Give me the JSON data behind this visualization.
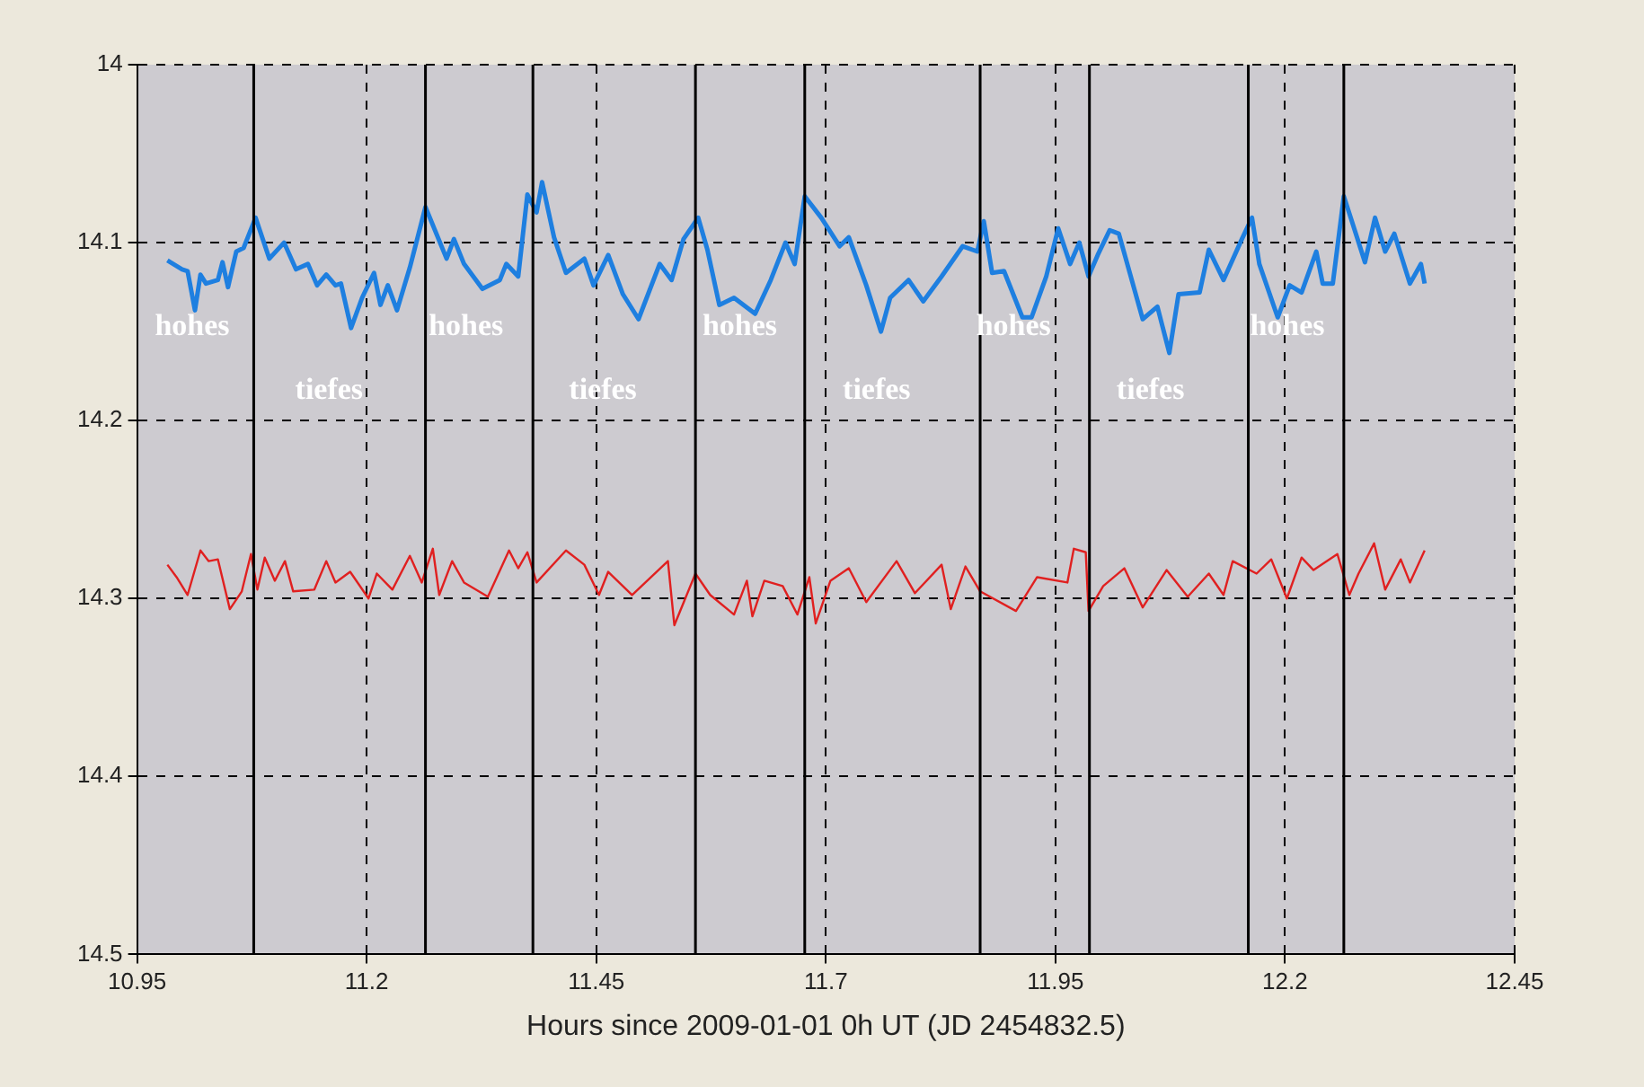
{
  "chart_data": {
    "type": "line",
    "xlabel": "Hours since 2009-01-01 0h UT (JD 2454832.5)",
    "xlim": [
      10.95,
      12.45
    ],
    "xticks": [
      10.95,
      11.2,
      11.45,
      11.7,
      11.95,
      12.2,
      12.45
    ],
    "ylim": [
      14.5,
      14
    ],
    "yticks": [
      14,
      14.1,
      14.2,
      14.3,
      14.4,
      14.5
    ],
    "grid": true,
    "legend": false,
    "line_style": "solid",
    "marker": "none",
    "series": [
      {
        "color": "#1e7fe0",
        "x": [
          10.983,
          10.999,
          11.005,
          11.013,
          11.019,
          11.025,
          11.038,
          11.043,
          11.049,
          11.058,
          11.066,
          11.079,
          11.094,
          11.11,
          11.123,
          11.136,
          11.146,
          11.156,
          11.166,
          11.172,
          11.183,
          11.195,
          11.208,
          11.215,
          11.223,
          11.233,
          11.247,
          11.264,
          11.287,
          11.295,
          11.306,
          11.326,
          11.345,
          11.352,
          11.365,
          11.375,
          11.385,
          11.391,
          11.404,
          11.417,
          11.437,
          11.447,
          11.463,
          11.479,
          11.496,
          11.519,
          11.532,
          11.545,
          11.561,
          11.571,
          11.584,
          11.6,
          11.623,
          11.64,
          11.656,
          11.666,
          11.677,
          11.695,
          11.715,
          11.725,
          11.744,
          11.76,
          11.77,
          11.79,
          11.806,
          11.826,
          11.849,
          11.865,
          11.872,
          11.881,
          11.894,
          11.914,
          11.924,
          11.94,
          11.953,
          11.966,
          11.976,
          11.986,
          11.996,
          12.009,
          12.019,
          12.045,
          12.061,
          12.074,
          12.084,
          12.107,
          12.117,
          12.133,
          12.153,
          12.164,
          12.172,
          12.192,
          12.205,
          12.218,
          12.234,
          12.241,
          12.252,
          12.264,
          12.274,
          12.287,
          12.298,
          12.309,
          12.319,
          12.336,
          12.348,
          12.352
        ],
        "values": [
          14.11,
          14.115,
          14.116,
          14.138,
          14.118,
          14.123,
          14.121,
          14.111,
          14.125,
          14.105,
          14.103,
          14.086,
          14.109,
          14.1,
          14.115,
          14.112,
          14.124,
          14.118,
          14.124,
          14.123,
          14.148,
          14.131,
          14.117,
          14.135,
          14.124,
          14.138,
          14.114,
          14.08,
          14.109,
          14.098,
          14.112,
          14.126,
          14.121,
          14.112,
          14.119,
          14.073,
          14.083,
          14.066,
          14.097,
          14.117,
          14.109,
          14.124,
          14.107,
          14.129,
          14.143,
          14.112,
          14.121,
          14.098,
          14.086,
          14.104,
          14.135,
          14.131,
          14.14,
          14.121,
          14.1,
          14.112,
          14.074,
          14.086,
          14.102,
          14.097,
          14.124,
          14.15,
          14.131,
          14.121,
          14.133,
          14.119,
          14.102,
          14.105,
          14.088,
          14.117,
          14.116,
          14.142,
          14.142,
          14.119,
          14.092,
          14.112,
          14.1,
          14.119,
          14.107,
          14.093,
          14.095,
          14.143,
          14.136,
          14.162,
          14.129,
          14.128,
          14.104,
          14.121,
          14.098,
          14.086,
          14.112,
          14.142,
          14.124,
          14.128,
          14.105,
          14.123,
          14.123,
          14.074,
          14.09,
          14.111,
          14.086,
          14.105,
          14.095,
          14.123,
          14.112,
          14.123
        ]
      },
      {
        "color": "#e02020",
        "x": [
          10.983,
          10.993,
          11.005,
          11.019,
          11.028,
          11.038,
          11.051,
          11.064,
          11.074,
          11.081,
          11.089,
          11.1,
          11.111,
          11.12,
          11.143,
          11.156,
          11.166,
          11.182,
          11.202,
          11.211,
          11.228,
          11.247,
          11.26,
          11.272,
          11.279,
          11.293,
          11.306,
          11.332,
          11.355,
          11.365,
          11.375,
          11.385,
          11.417,
          11.437,
          11.453,
          11.463,
          11.489,
          11.528,
          11.535,
          11.558,
          11.574,
          11.6,
          11.614,
          11.62,
          11.633,
          11.653,
          11.669,
          11.682,
          11.689,
          11.705,
          11.725,
          11.744,
          11.777,
          11.797,
          11.826,
          11.836,
          11.852,
          11.868,
          11.907,
          11.93,
          11.963,
          11.97,
          11.983,
          11.986,
          12.002,
          12.025,
          12.045,
          12.071,
          12.094,
          12.117,
          12.133,
          12.143,
          12.169,
          12.185,
          12.202,
          12.218,
          12.231,
          12.257,
          12.27,
          12.28,
          12.297,
          12.309,
          12.326,
          12.336,
          12.352
        ],
        "values": [
          14.281,
          14.288,
          14.298,
          14.273,
          14.279,
          14.278,
          14.306,
          14.296,
          14.275,
          14.295,
          14.277,
          14.29,
          14.279,
          14.296,
          14.295,
          14.279,
          14.291,
          14.285,
          14.3,
          14.286,
          14.295,
          14.276,
          14.291,
          14.272,
          14.298,
          14.279,
          14.291,
          14.299,
          14.273,
          14.283,
          14.274,
          14.291,
          14.273,
          14.281,
          14.298,
          14.285,
          14.298,
          14.279,
          14.315,
          14.286,
          14.298,
          14.309,
          14.29,
          14.31,
          14.29,
          14.293,
          14.309,
          14.288,
          14.314,
          14.29,
          14.283,
          14.302,
          14.279,
          14.297,
          14.281,
          14.306,
          14.282,
          14.296,
          14.307,
          14.288,
          14.291,
          14.272,
          14.274,
          14.307,
          14.293,
          14.283,
          14.305,
          14.284,
          14.299,
          14.286,
          14.298,
          14.279,
          14.286,
          14.278,
          14.3,
          14.277,
          14.284,
          14.275,
          14.298,
          14.286,
          14.269,
          14.295,
          14.278,
          14.291,
          14.273
        ]
      }
    ],
    "ref_lines": [
      {
        "axis": "x",
        "value": 11.077,
        "color": "#000000"
      },
      {
        "axis": "x",
        "value": 11.264,
        "color": "#000000"
      },
      {
        "axis": "x",
        "value": 11.381,
        "color": "#000000"
      },
      {
        "axis": "x",
        "value": 11.558,
        "color": "#000000"
      },
      {
        "axis": "x",
        "value": 11.677,
        "color": "#000000"
      },
      {
        "axis": "x",
        "value": 11.868,
        "color": "#000000"
      },
      {
        "axis": "x",
        "value": 11.987,
        "color": "#000000"
      },
      {
        "axis": "x",
        "value": 12.16,
        "color": "#000000"
      },
      {
        "axis": "x",
        "value": 12.264,
        "color": "#000000"
      }
    ],
    "annotations": [
      "hohes",
      "tiefes",
      "hohes",
      "tiefes",
      "hohes",
      "tiefes",
      "hohes",
      "tiefes",
      "hohes"
    ]
  }
}
